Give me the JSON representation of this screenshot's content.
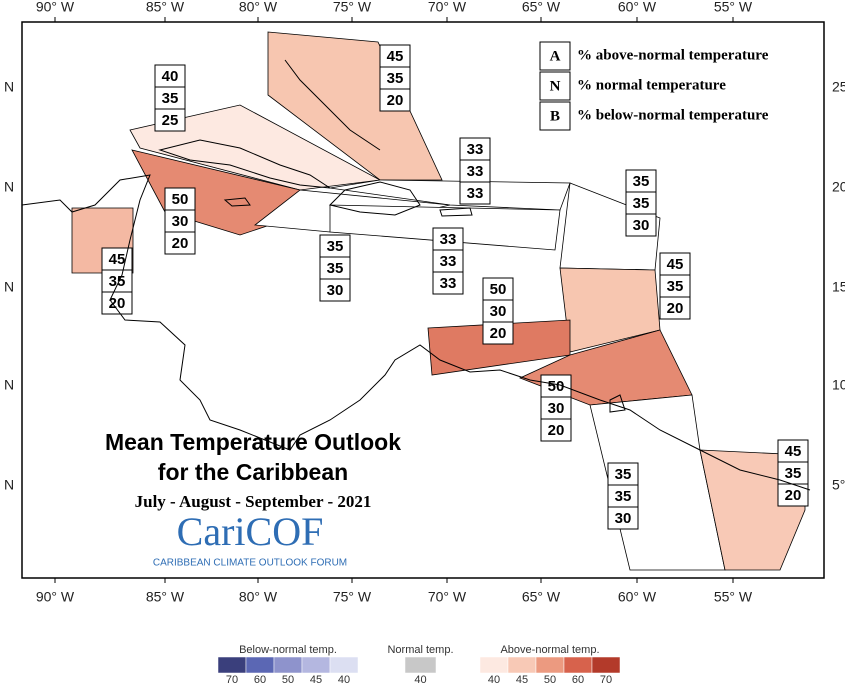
{
  "axes": {
    "top_labels": [
      "90° W",
      "85° W",
      "80° W",
      "75° W",
      "70° W",
      "65° W",
      "60° W",
      "55° W"
    ],
    "bottom_labels": [
      "90° W",
      "85° W",
      "80° W",
      "75° W",
      "70° W",
      "65° W",
      "60° W",
      "55° W"
    ],
    "left_labels": [
      "N",
      "N",
      "N",
      "N",
      "N"
    ],
    "right_labels": [
      "25",
      "20",
      "15",
      "10",
      "5°"
    ]
  },
  "key": [
    {
      "letter": "A",
      "text": "% above-normal temperature"
    },
    {
      "letter": "N",
      "text": "% normal temperature"
    },
    {
      "letter": "B",
      "text": "% below-normal temperature"
    }
  ],
  "title": {
    "line1": "Mean Temperature Outlook",
    "line2": "for the Caribbean",
    "period": "July - August - September - 2021",
    "logo": "CariCOF",
    "logo_sub": "CARIBBEAN CLIMATE OUTLOOK FORUM"
  },
  "zones": [
    {
      "values": [
        45,
        35,
        20
      ],
      "color": "#f7c6b0"
    },
    {
      "values": [
        40,
        35,
        25
      ],
      "color": "#fde9e1"
    },
    {
      "values": [
        50,
        30,
        20
      ],
      "color": "#e58a72"
    },
    {
      "values": [
        33,
        33,
        33
      ],
      "color": "#ffffff"
    },
    {
      "values": [
        35,
        35,
        30
      ],
      "color": "#ffffff"
    },
    {
      "values": [
        33,
        33,
        33
      ],
      "color": "#ffffff"
    },
    {
      "values": [
        45,
        35,
        20
      ],
      "color": "#f4b9a3"
    },
    {
      "values": [
        35,
        35,
        30
      ],
      "color": "#ffffff"
    },
    {
      "values": [
        45,
        35,
        20
      ],
      "color": "#f7c6b0"
    },
    {
      "values": [
        50,
        30,
        20
      ],
      "color": "#df7a62"
    },
    {
      "values": [
        50,
        30,
        20
      ],
      "color": "#e58a72"
    },
    {
      "values": [
        35,
        35,
        30
      ],
      "color": "#ffffff"
    },
    {
      "values": [
        45,
        35,
        20
      ],
      "color": "#f8c9b6"
    }
  ],
  "colorbar": [
    {
      "label": "Below-normal temp.",
      "ticks": [
        "70",
        "60",
        "50",
        "45",
        "40"
      ],
      "colors": [
        "#3a3f7c",
        "#5b67b4",
        "#8e93cc",
        "#b4b7e0",
        "#dcdff2"
      ]
    },
    {
      "label": "Normal temp.",
      "ticks": [
        "40"
      ],
      "colors": [
        "#c8c8c8"
      ]
    },
    {
      "label": "Above-normal temp.",
      "ticks": [
        "40",
        "45",
        "50",
        "60",
        "70"
      ],
      "colors": [
        "#fde9e1",
        "#f8c9b6",
        "#ec9a80",
        "#d7624c",
        "#b33a2a"
      ]
    }
  ]
}
